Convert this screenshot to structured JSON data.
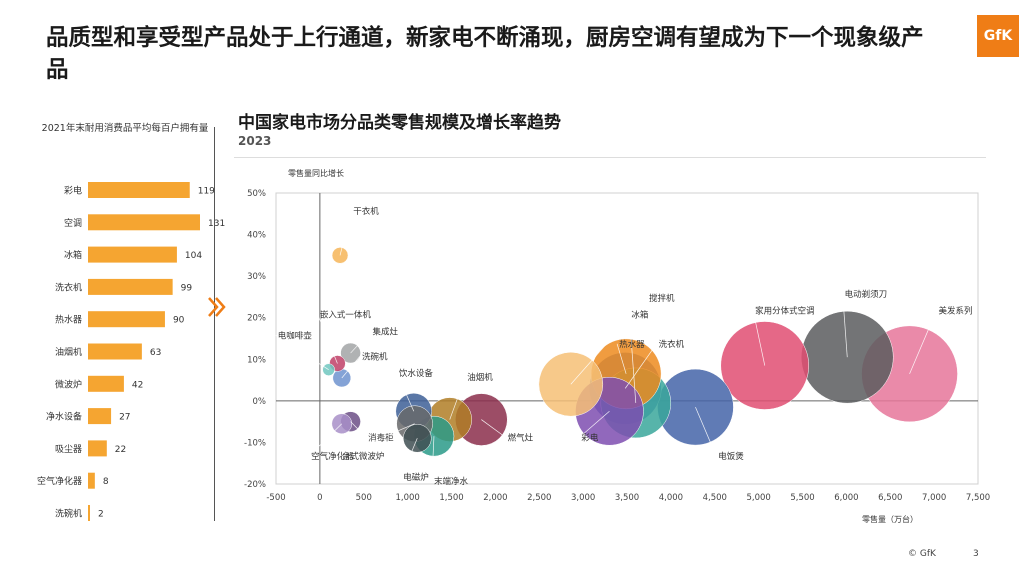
{
  "header": {
    "title": "品质型和享受型产品处于上行通道，新家电不断涌现，厨房空调有望成为下一个现象级产品",
    "logo": "GfK"
  },
  "left_panel": {
    "title": "2021年末耐用消费品平均每百户拥有量"
  },
  "main_chart": {
    "title": "中国家电市场分品类零售规模及增长率趋势",
    "subtitle": "2023"
  },
  "footer": {
    "copyright": "© GfK",
    "page": "3"
  },
  "chart_data": [
    {
      "type": "bar",
      "orientation": "horizontal",
      "title": "2021年末耐用消费品平均每百户拥有量",
      "bar_color": "#f5a531",
      "categories": [
        "彩电",
        "空调",
        "冰箱",
        "洗衣机",
        "热水器",
        "油烟机",
        "微波炉",
        "净水设备",
        "吸尘器",
        "空气净化器",
        "洗碗机"
      ],
      "values": [
        119,
        131,
        104,
        99,
        90,
        63,
        42,
        27,
        22,
        8,
        2
      ],
      "xlim": [
        0,
        131
      ]
    },
    {
      "type": "scatter",
      "subtype": "bubble",
      "title": "中国家电市场分品类零售规模及增长率趋势",
      "subtitle": "2023",
      "xlabel": "零售量（万台）",
      "ylabel": "零售量同比增长",
      "xlim": [
        -500,
        7500
      ],
      "ylim": [
        -20,
        50
      ],
      "x_ticks": [
        "-500",
        "0",
        "500",
        "1,000",
        "1,500",
        "2,000",
        "2,500",
        "3,000",
        "3,500",
        "4,000",
        "4,500",
        "5,000",
        "5,500",
        "6,000",
        "6,500",
        "7,000",
        "7,500"
      ],
      "y_ticks": [
        "-20%",
        "-10%",
        "0%",
        "10%",
        "20%",
        "30%",
        "40%",
        "50%"
      ],
      "grid": false,
      "points": [
        {
          "label": "干衣机",
          "x": 230,
          "y": 35,
          "size": 8,
          "color": "#f6b558",
          "lx": 380,
          "ly": 45,
          "ha": "start"
        },
        {
          "label": "嵌入式一体机",
          "x": 200,
          "y": 9,
          "size": 8,
          "color": "#c03f67",
          "lx": 0,
          "ly": 20,
          "ha": "start"
        },
        {
          "label": "电咖啡壶",
          "x": 100,
          "y": 7.5,
          "size": 6,
          "color": "#70c7c0",
          "lx": -480,
          "ly": 15,
          "ha": "start"
        },
        {
          "label": "集成灶",
          "x": 350,
          "y": 11.5,
          "size": 10,
          "color": "#a2a4a6",
          "lx": 600,
          "ly": 16,
          "ha": "start"
        },
        {
          "label": "洗碗机",
          "x": 250,
          "y": 5.5,
          "size": 9,
          "color": "#6f93cf",
          "lx": 480,
          "ly": 10,
          "ha": "start"
        },
        {
          "label": "饮水设备",
          "x": 1070,
          "y": -2.5,
          "size": 18,
          "color": "#3d5f96",
          "lx": 900,
          "ly": 6,
          "ha": "start"
        },
        {
          "label": "油烟机",
          "x": 1480,
          "y": -4.5,
          "size": 22,
          "color": "#b07e26",
          "lx": 1680,
          "ly": 5,
          "ha": "start"
        },
        {
          "label": "燃气灶",
          "x": 1840,
          "y": -4.5,
          "size": 26,
          "color": "#8b2e4b",
          "lx": 2140,
          "ly": -9.5,
          "ha": "start"
        },
        {
          "label": "消毒柜",
          "x": 350,
          "y": -5,
          "size": 10,
          "color": "#6c4f86",
          "lx": 550,
          "ly": -9.5,
          "ha": "start"
        },
        {
          "label": "空气净化器",
          "x": 250,
          "y": -5.5,
          "size": 10,
          "color": "#a88fc8",
          "lx": -100,
          "ly": -14,
          "ha": "start"
        },
        {
          "label": "台式微波炉",
          "x": 1080,
          "y": -5.5,
          "size": 18,
          "color": "#67686a",
          "lx": 250,
          "ly": -14,
          "ha": "start"
        },
        {
          "label": "电磁炉",
          "x": 1110,
          "y": -9,
          "size": 14,
          "color": "#404f52",
          "lx": 950,
          "ly": -19,
          "ha": "start"
        },
        {
          "label": "末端净水",
          "x": 1300,
          "y": -8.5,
          "size": 20,
          "color": "#2a9a88",
          "lx": 1300,
          "ly": -20,
          "ha": "start"
        },
        {
          "label": "彩电",
          "x": 3300,
          "y": -2.5,
          "size": 34,
          "color": "#7e4db0",
          "lx": 2980,
          "ly": -9.5,
          "ha": "start"
        },
        {
          "label": "冰箱",
          "x": 3600,
          "y": -0.5,
          "size": 35,
          "color": "#3aa79b",
          "lx": 3550,
          "ly": 20,
          "ha": "start"
        },
        {
          "label": "洗衣机",
          "x": 3480,
          "y": 3,
          "size": 36,
          "color": "#4f73b8",
          "lx": 3860,
          "ly": 13,
          "ha": "start"
        },
        {
          "label": "热水器",
          "x": 3490,
          "y": 6.5,
          "size": 35,
          "color": "#ed8b1e",
          "lx": 3410,
          "ly": 13,
          "ha": "start"
        },
        {
          "label": "搅拌机",
          "x": 2860,
          "y": 4,
          "size": 32,
          "color": "#f6bf75",
          "lx": 3750,
          "ly": 24,
          "ha": "start"
        },
        {
          "label": "电饭煲",
          "x": 4280,
          "y": -1.5,
          "size": 38,
          "color": "#4464a8",
          "lx": 4540,
          "ly": -14,
          "ha": "start"
        },
        {
          "label": "家用分体式空调",
          "x": 5070,
          "y": 8.5,
          "size": 44,
          "color": "#e04e72",
          "lx": 4960,
          "ly": 21,
          "ha": "start"
        },
        {
          "label": "电动剃须刀",
          "x": 6010,
          "y": 10.5,
          "size": 46,
          "color": "#5a5c5e",
          "lx": 5980,
          "ly": 25,
          "ha": "start"
        },
        {
          "label": "美发系列",
          "x": 6720,
          "y": 6.5,
          "size": 48,
          "color": "#e6759a",
          "lx": 7050,
          "ly": 21,
          "ha": "start"
        }
      ]
    }
  ]
}
